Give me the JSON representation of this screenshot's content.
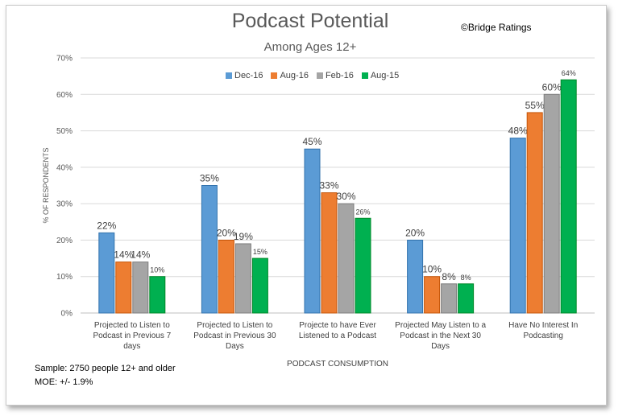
{
  "header": {
    "title": "Podcast Potential",
    "subtitle": "Among Ages 12+",
    "copyright": "©Bridge Ratings"
  },
  "notes": {
    "sample": "Sample: 2750 people 12+ and older",
    "moe": "MOE: +/- 1.9%"
  },
  "chart_data": {
    "type": "bar",
    "title": "Podcast Potential",
    "subtitle": "Among Ages 12+",
    "xlabel": "PODCAST CONSUMPTION",
    "ylabel": "% OF RESPONDENTS",
    "ylim": [
      0,
      70
    ],
    "yticks": [
      0,
      10,
      20,
      30,
      40,
      50,
      60,
      70
    ],
    "ytick_labels": [
      "0%",
      "10%",
      "20%",
      "30%",
      "40%",
      "50%",
      "60%",
      "70%"
    ],
    "grid": true,
    "legend_position": "top",
    "categories": [
      [
        "Projected to Listen to",
        "Podcast in Previous 7",
        "days"
      ],
      [
        "Projected to Listen to",
        "Podcast in Previous 30",
        "Days"
      ],
      [
        "Projecte to have Ever",
        "Listened to a Podcast"
      ],
      [
        "Projected May Listen to a",
        "Podcast in the Next 30",
        "Days"
      ],
      [
        "Have No Interest In",
        "Podcasting"
      ]
    ],
    "series": [
      {
        "name": "Dec-16",
        "color": "#5b9bd5",
        "values": [
          22,
          35,
          45,
          20,
          48
        ],
        "labels": [
          "22%",
          "35%",
          "45%",
          "20%",
          "48%"
        ]
      },
      {
        "name": "Aug-16",
        "color": "#ed7d31",
        "values": [
          14,
          20,
          33,
          10,
          55
        ],
        "labels": [
          "14%",
          "20%",
          "33%",
          "10%",
          "55%"
        ]
      },
      {
        "name": "Feb-16",
        "color": "#a5a5a5",
        "values": [
          14,
          19,
          30,
          8,
          60
        ],
        "labels": [
          "14%",
          "19%",
          "30%",
          "8%",
          "60%"
        ]
      },
      {
        "name": "Aug-15",
        "color": "#00b050",
        "values": [
          10,
          15,
          26,
          8,
          64
        ],
        "labels": [
          "10%",
          "15%",
          "26%",
          "8%",
          "64%"
        ]
      }
    ]
  }
}
